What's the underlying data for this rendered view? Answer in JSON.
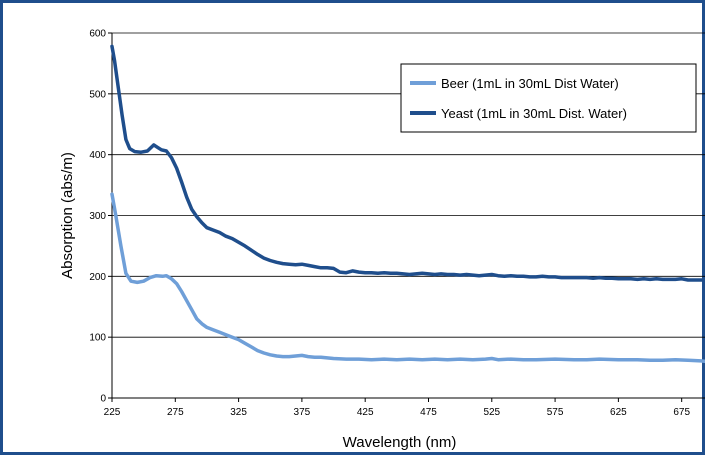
{
  "chart_data": {
    "type": "line",
    "title": "",
    "xlabel": "Wavelength (nm)",
    "ylabel": "Absorption (abs/m)",
    "xlim": [
      225,
      695
    ],
    "ylim": [
      0,
      600
    ],
    "x_ticks": [
      225,
      275,
      325,
      375,
      425,
      475,
      525,
      575,
      625,
      675
    ],
    "y_ticks": [
      0,
      100,
      200,
      300,
      400,
      500,
      600
    ],
    "grid": "horizontal",
    "legend_position": "top-right",
    "series": [
      {
        "name": "Beer (1mL in 30mL Dist Water)",
        "color": "#6f9fd8",
        "points": [
          [
            225,
            335
          ],
          [
            228,
            300
          ],
          [
            232,
            250
          ],
          [
            236,
            205
          ],
          [
            240,
            192
          ],
          [
            245,
            190
          ],
          [
            250,
            192
          ],
          [
            255,
            198
          ],
          [
            260,
            201
          ],
          [
            265,
            200
          ],
          [
            268,
            201
          ],
          [
            272,
            196
          ],
          [
            276,
            188
          ],
          [
            280,
            175
          ],
          [
            284,
            160
          ],
          [
            288,
            145
          ],
          [
            292,
            130
          ],
          [
            296,
            122
          ],
          [
            300,
            116
          ],
          [
            305,
            112
          ],
          [
            310,
            108
          ],
          [
            315,
            104
          ],
          [
            320,
            100
          ],
          [
            325,
            96
          ],
          [
            330,
            90
          ],
          [
            335,
            84
          ],
          [
            340,
            78
          ],
          [
            345,
            74
          ],
          [
            350,
            71
          ],
          [
            355,
            69
          ],
          [
            360,
            68
          ],
          [
            365,
            68
          ],
          [
            370,
            69
          ],
          [
            375,
            70
          ],
          [
            380,
            68
          ],
          [
            385,
            67
          ],
          [
            390,
            67
          ],
          [
            395,
            66
          ],
          [
            400,
            65
          ],
          [
            410,
            64
          ],
          [
            420,
            64
          ],
          [
            430,
            63
          ],
          [
            440,
            64
          ],
          [
            450,
            63
          ],
          [
            460,
            64
          ],
          [
            470,
            63
          ],
          [
            480,
            64
          ],
          [
            490,
            63
          ],
          [
            500,
            64
          ],
          [
            510,
            63
          ],
          [
            520,
            64
          ],
          [
            525,
            65
          ],
          [
            530,
            63
          ],
          [
            540,
            64
          ],
          [
            550,
            63
          ],
          [
            560,
            63
          ],
          [
            575,
            64
          ],
          [
            590,
            63
          ],
          [
            600,
            63
          ],
          [
            610,
            64
          ],
          [
            625,
            63
          ],
          [
            640,
            63
          ],
          [
            650,
            62
          ],
          [
            660,
            62
          ],
          [
            670,
            63
          ],
          [
            680,
            62
          ],
          [
            690,
            61
          ],
          [
            695,
            60
          ]
        ]
      },
      {
        "name": "Yeast (1mL in 30mL Dist. Water)",
        "color": "#1f4e8c",
        "points": [
          [
            225,
            578
          ],
          [
            227,
            555
          ],
          [
            230,
            510
          ],
          [
            233,
            465
          ],
          [
            236,
            425
          ],
          [
            239,
            410
          ],
          [
            243,
            405
          ],
          [
            248,
            404
          ],
          [
            253,
            406
          ],
          [
            256,
            412
          ],
          [
            258,
            416
          ],
          [
            261,
            412
          ],
          [
            264,
            408
          ],
          [
            268,
            406
          ],
          [
            272,
            395
          ],
          [
            276,
            378
          ],
          [
            280,
            355
          ],
          [
            284,
            330
          ],
          [
            288,
            310
          ],
          [
            292,
            298
          ],
          [
            296,
            288
          ],
          [
            300,
            280
          ],
          [
            305,
            276
          ],
          [
            310,
            272
          ],
          [
            315,
            266
          ],
          [
            320,
            262
          ],
          [
            325,
            256
          ],
          [
            330,
            250
          ],
          [
            335,
            243
          ],
          [
            340,
            236
          ],
          [
            345,
            230
          ],
          [
            350,
            226
          ],
          [
            355,
            223
          ],
          [
            360,
            221
          ],
          [
            365,
            220
          ],
          [
            370,
            219
          ],
          [
            375,
            220
          ],
          [
            380,
            218
          ],
          [
            385,
            216
          ],
          [
            390,
            214
          ],
          [
            395,
            214
          ],
          [
            400,
            213
          ],
          [
            405,
            207
          ],
          [
            410,
            206
          ],
          [
            415,
            209
          ],
          [
            420,
            207
          ],
          [
            425,
            206
          ],
          [
            430,
            206
          ],
          [
            435,
            205
          ],
          [
            440,
            206
          ],
          [
            445,
            205
          ],
          [
            450,
            205
          ],
          [
            455,
            204
          ],
          [
            460,
            203
          ],
          [
            465,
            204
          ],
          [
            470,
            205
          ],
          [
            475,
            204
          ],
          [
            480,
            203
          ],
          [
            485,
            204
          ],
          [
            490,
            203
          ],
          [
            495,
            203
          ],
          [
            500,
            202
          ],
          [
            505,
            203
          ],
          [
            510,
            202
          ],
          [
            515,
            201
          ],
          [
            520,
            202
          ],
          [
            525,
            203
          ],
          [
            530,
            201
          ],
          [
            535,
            200
          ],
          [
            540,
            201
          ],
          [
            545,
            200
          ],
          [
            550,
            200
          ],
          [
            555,
            199
          ],
          [
            560,
            199
          ],
          [
            565,
            200
          ],
          [
            570,
            199
          ],
          [
            575,
            199
          ],
          [
            580,
            198
          ],
          [
            585,
            198
          ],
          [
            590,
            198
          ],
          [
            595,
            198
          ],
          [
            600,
            198
          ],
          [
            605,
            197
          ],
          [
            610,
            198
          ],
          [
            615,
            197
          ],
          [
            620,
            197
          ],
          [
            625,
            196
          ],
          [
            630,
            196
          ],
          [
            635,
            196
          ],
          [
            640,
            195
          ],
          [
            645,
            196
          ],
          [
            650,
            195
          ],
          [
            655,
            196
          ],
          [
            660,
            195
          ],
          [
            665,
            195
          ],
          [
            670,
            195
          ],
          [
            675,
            196
          ],
          [
            680,
            194
          ],
          [
            685,
            194
          ],
          [
            690,
            194
          ],
          [
            695,
            194
          ]
        ]
      }
    ]
  }
}
